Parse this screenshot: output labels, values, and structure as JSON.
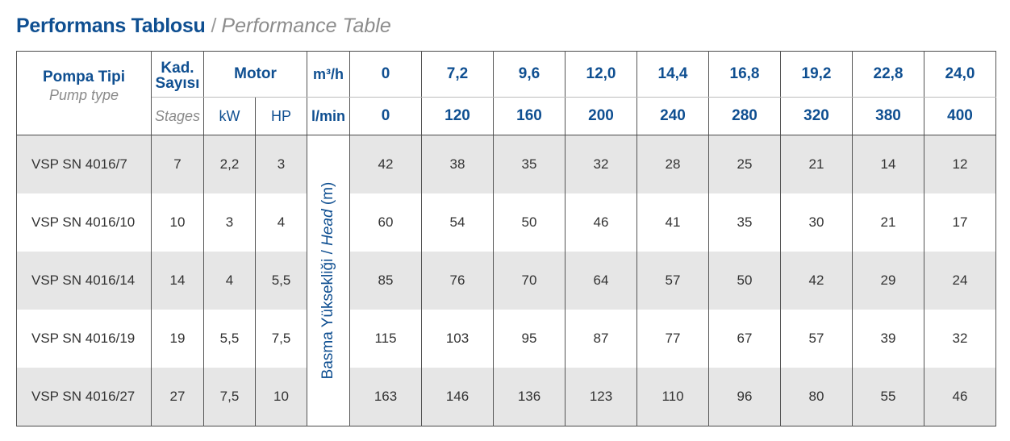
{
  "title": {
    "turkish": "Performans Tablosu",
    "separator": "/",
    "english": "Performance Table"
  },
  "header": {
    "pump_type_tr": "Pompa Tipi",
    "pump_type_en": "Pump type",
    "stages_tr_line1": "Kad.",
    "stages_tr_line2": "Sayısı",
    "stages_en": "Stages",
    "motor": "Motor",
    "kw": "kW",
    "hp": "HP",
    "unit_m3h": "m³/h",
    "unit_lmin": "l/min",
    "flow_m3h": [
      "0",
      "7,2",
      "9,6",
      "12,0",
      "14,4",
      "16,8",
      "19,2",
      "22,8",
      "24,0"
    ],
    "flow_lmin": [
      "0",
      "120",
      "160",
      "200",
      "240",
      "280",
      "320",
      "380",
      "400"
    ]
  },
  "head_axis": {
    "tr": "Basma Yüksekliği",
    "separator": "/",
    "en": "Head",
    "unit": "(m)"
  },
  "rows": [
    {
      "model": "VSP SN 4016/7",
      "stages": "7",
      "kw": "2,2",
      "hp": "3",
      "head": [
        "42",
        "38",
        "35",
        "32",
        "28",
        "25",
        "21",
        "14",
        "12"
      ]
    },
    {
      "model": "VSP SN 4016/10",
      "stages": "10",
      "kw": "3",
      "hp": "4",
      "head": [
        "60",
        "54",
        "50",
        "46",
        "41",
        "35",
        "30",
        "21",
        "17"
      ]
    },
    {
      "model": "VSP SN 4016/14",
      "stages": "14",
      "kw": "4",
      "hp": "5,5",
      "head": [
        "85",
        "76",
        "70",
        "64",
        "57",
        "50",
        "42",
        "29",
        "24"
      ]
    },
    {
      "model": "VSP SN 4016/19",
      "stages": "19",
      "kw": "5,5",
      "hp": "7,5",
      "head": [
        "115",
        "103",
        "95",
        "87",
        "77",
        "67",
        "57",
        "39",
        "32"
      ]
    },
    {
      "model": "VSP SN 4016/27",
      "stages": "27",
      "kw": "7,5",
      "hp": "10",
      "head": [
        "163",
        "146",
        "136",
        "123",
        "110",
        "96",
        "80",
        "55",
        "46"
      ]
    }
  ],
  "colors": {
    "brand_blue": "#0f4f91",
    "row_shade": "#e6e6e6",
    "muted_text": "#8a8a8a"
  }
}
